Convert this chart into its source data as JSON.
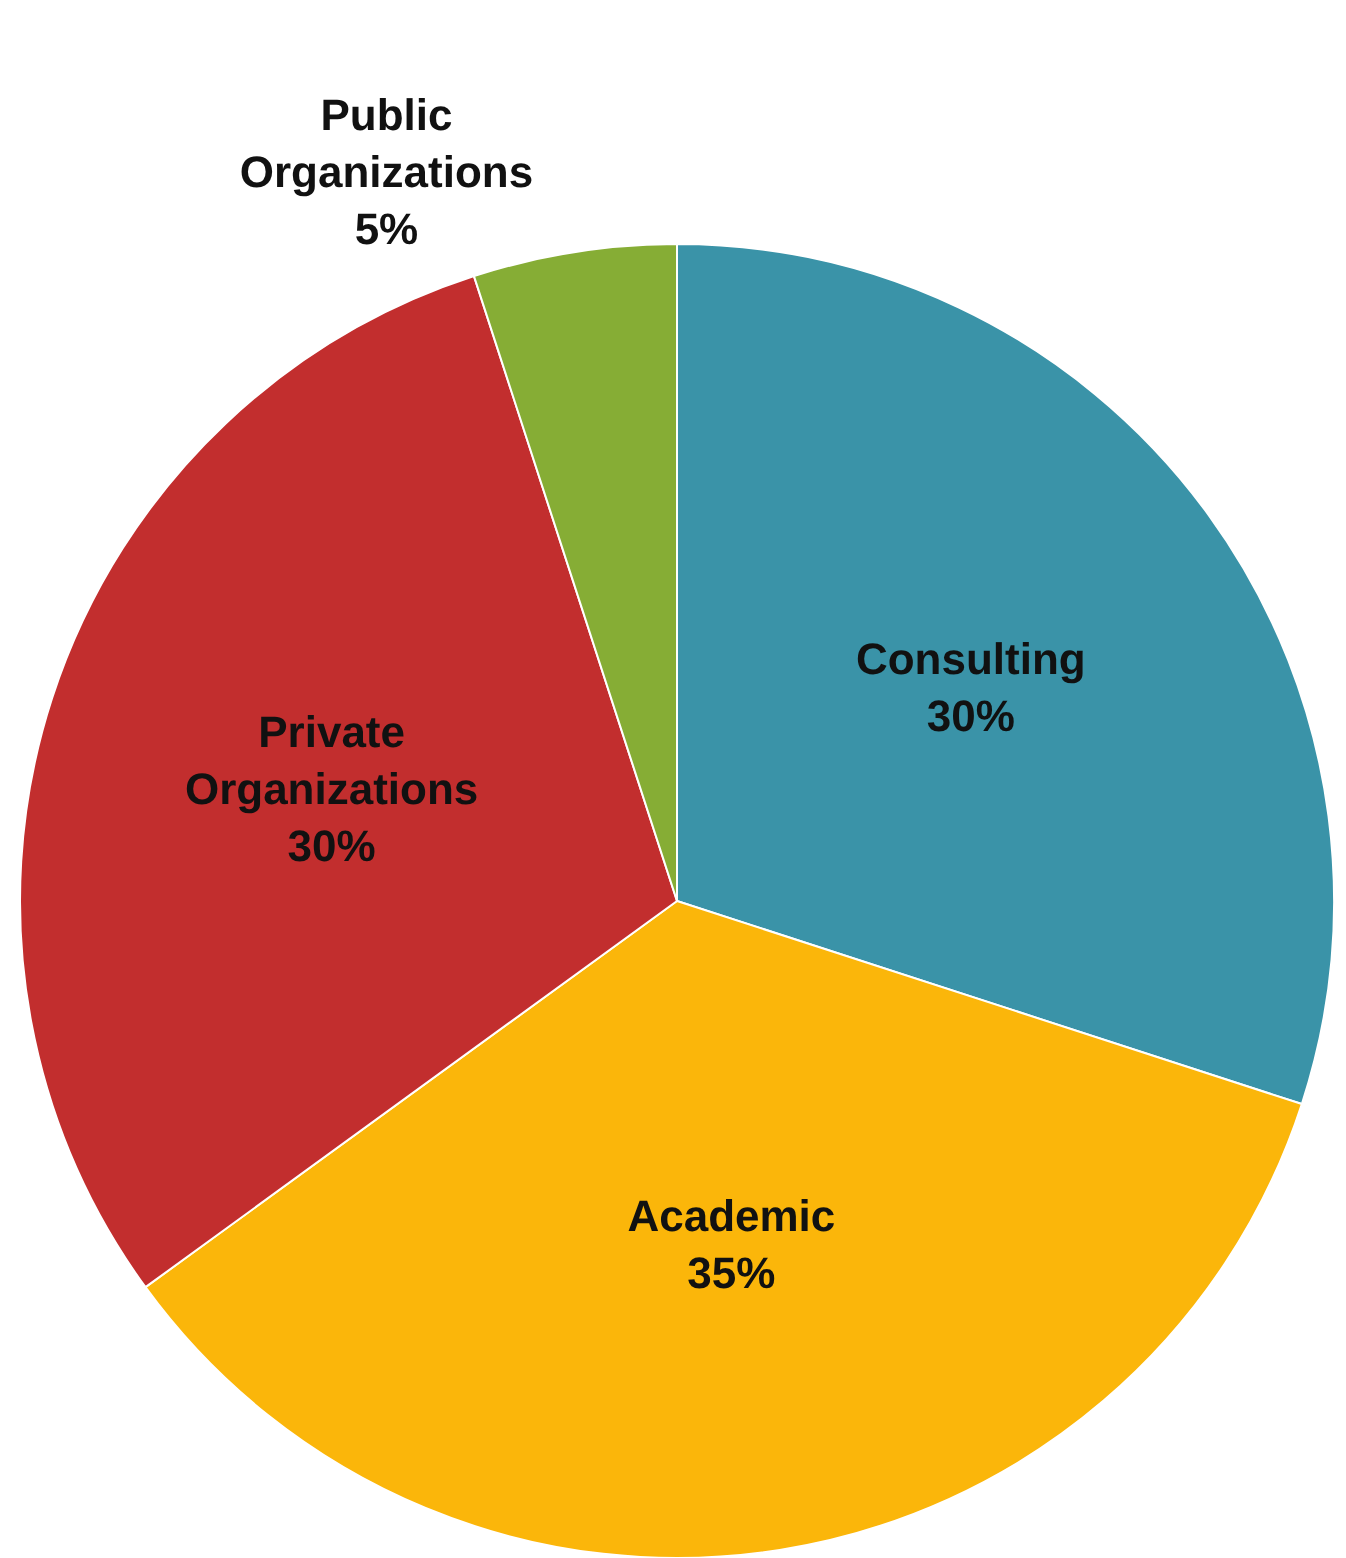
{
  "chart_data": {
    "type": "pie",
    "categories": [
      "Consulting",
      "Academic",
      "Private Organizations",
      "Public Organizations"
    ],
    "values": [
      30,
      35,
      30,
      5
    ],
    "colors": [
      "#3a93a8",
      "#fbb60a",
      "#c22e2e",
      "#86ad35"
    ],
    "value_labels": [
      "30%",
      "35%",
      "30%",
      "5%"
    ]
  }
}
